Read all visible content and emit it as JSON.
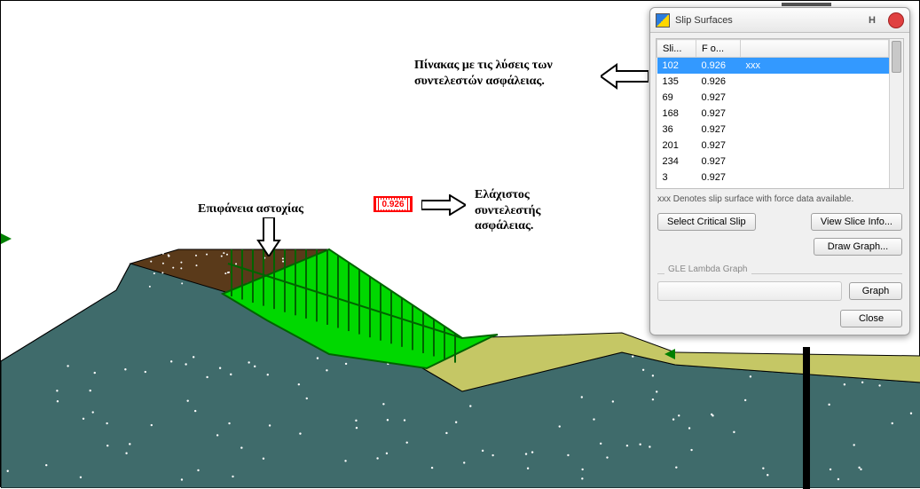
{
  "dialog": {
    "title": "Slip Surfaces",
    "columns": [
      "Sli...",
      "F o..."
    ],
    "rows": [
      {
        "sli": "102",
        "fo": "0.926",
        "extra": "xxx",
        "selected": true
      },
      {
        "sli": "135",
        "fo": "0.926"
      },
      {
        "sli": "69",
        "fo": "0.927"
      },
      {
        "sli": "168",
        "fo": "0.927"
      },
      {
        "sli": "36",
        "fo": "0.927"
      },
      {
        "sli": "201",
        "fo": "0.927"
      },
      {
        "sli": "234",
        "fo": "0.927"
      },
      {
        "sli": "3",
        "fo": "0.927"
      }
    ],
    "footnote": "xxx Denotes slip surface with force data available.",
    "buttons": {
      "select_critical": "Select Critical Slip",
      "view_slice": "View Slice Info...",
      "draw_graph": "Draw Graph...",
      "graph": "Graph",
      "close": "Close"
    },
    "lambda_label": "GLE Lambda Graph"
  },
  "annotations": {
    "table_note": "Πίνακας με τις λύσεις των συντελεστών ασφάλειας.",
    "failure_surface": "Επιφάνεια αστοχίας",
    "min_factor": "Ελάχιστος συντελεστής ασφάλειας.",
    "marker_value": "0.926"
  },
  "geology": {
    "colors": {
      "background": "#ffffff",
      "bedrock": "#3f6b6b",
      "dots": "#ffffff",
      "upper_soil": "#c5c765",
      "embankment_fill": "#5a3a1a",
      "slip_mass": "#00d800",
      "slip_stripes": "#006400",
      "outline": "#000000"
    },
    "bedrock_poly": "0,406 130,326 146,296 256,296 280,300 520,440 700,396 760,410 1037,430 1037,549 0,549",
    "upper_soil_poly": "0,406 130,326 146,296 252,296 520,380 700,374 760,396 1037,400 1037,430 760,410 700,396 520,440 280,300 256,296 146,296 130,326",
    "embankment_poly": "146,296 200,280 370,280 260,330",
    "slip_poly": "250,330 370,280 520,380 560,376 554,378 480,414 370,398 300,360",
    "slip_inner_line": "M256,296 L520,380",
    "slice_lines_x": [
      260,
      272,
      284,
      296,
      308,
      320,
      332,
      344,
      356,
      368,
      380,
      392,
      404,
      416,
      428,
      440,
      452,
      464,
      476,
      488,
      500,
      512
    ]
  }
}
